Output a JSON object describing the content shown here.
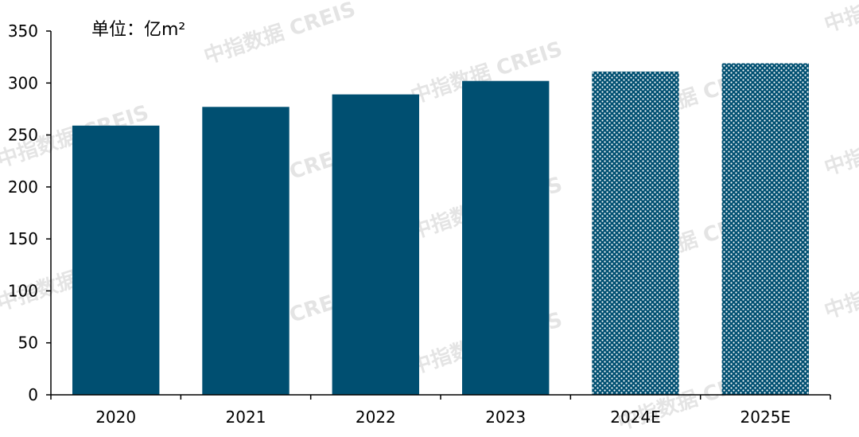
{
  "watermark": "中指数据 CREIS",
  "colors": {
    "bar": "#004f71",
    "axis": "#000000"
  },
  "chart_data": {
    "type": "bar",
    "unit_label": "单位：亿m²",
    "categories": [
      "2020",
      "2021",
      "2022",
      "2023",
      "2024E",
      "2025E"
    ],
    "values": [
      259,
      277,
      289,
      302,
      311,
      319
    ],
    "patterned": [
      false,
      false,
      false,
      false,
      true,
      true
    ],
    "ylim": [
      0,
      350
    ],
    "yticks": [
      0,
      50,
      100,
      150,
      200,
      250,
      300,
      350
    ],
    "legend": "none",
    "grid": false
  }
}
